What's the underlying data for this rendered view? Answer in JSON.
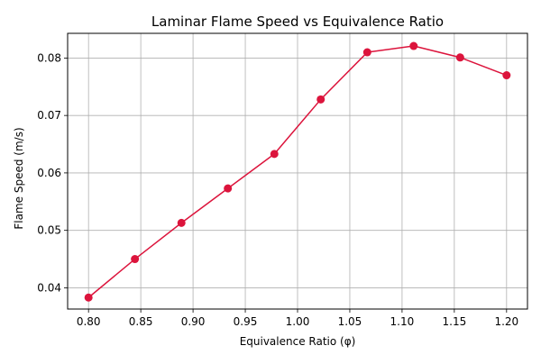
{
  "chart_data": {
    "type": "line",
    "title": "Laminar Flame Speed vs Equivalence Ratio",
    "xlabel": "Equivalence Ratio (φ)",
    "ylabel": "Flame Speed (m/s)",
    "x": [
      0.8,
      0.8444,
      0.8889,
      0.9333,
      0.9778,
      1.0222,
      1.0667,
      1.1111,
      1.1556,
      1.2
    ],
    "series": [
      {
        "values": [
          0.0383,
          0.045,
          0.0513,
          0.0573,
          0.0633,
          0.0728,
          0.081,
          0.0821,
          0.0801,
          0.077
        ],
        "color": "#dc143c",
        "marker": "circle"
      }
    ],
    "xlim": [
      0.78,
      1.22
    ],
    "ylim": [
      0.0363,
      0.0843
    ],
    "xticks": [
      0.8,
      0.85,
      0.9,
      0.95,
      1.0,
      1.05,
      1.1,
      1.15,
      1.2
    ],
    "xtick_labels": [
      "0.80",
      "0.85",
      "0.90",
      "0.95",
      "1.00",
      "1.05",
      "1.10",
      "1.15",
      "1.20"
    ],
    "yticks": [
      0.04,
      0.05,
      0.06,
      0.07,
      0.08
    ],
    "ytick_labels": [
      "0.04",
      "0.05",
      "0.06",
      "0.07",
      "0.08"
    ],
    "grid": true,
    "grid_color": "#b0b0b0",
    "legend": "none"
  }
}
